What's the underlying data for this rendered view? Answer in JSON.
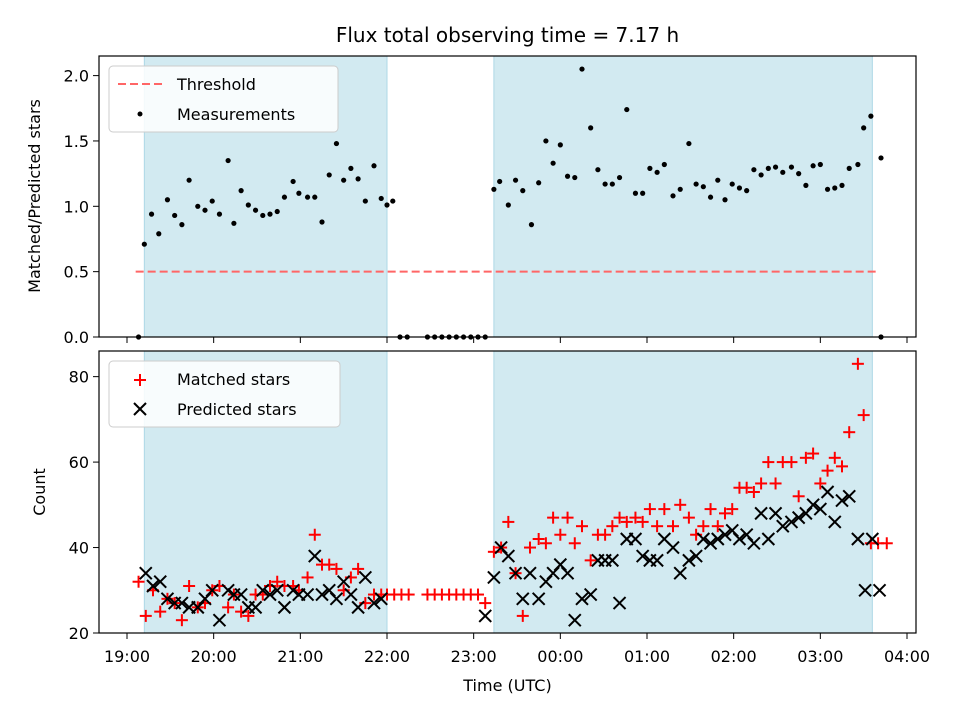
{
  "chart_data": [
    {
      "type": "scatter",
      "title": "Flux total observing time = 7.17 h",
      "ylabel": "Matched/Predicted stars",
      "xlabel": "",
      "ylim": [
        0,
        2.15
      ],
      "yticks": [
        "0.0",
        "0.5",
        "1.0",
        "1.5",
        "2.0"
      ],
      "ytick_values": [
        0.0,
        0.5,
        1.0,
        1.5,
        2.0
      ],
      "shaded_intervals": [
        [
          "19:12",
          "22:00"
        ],
        [
          "23:14",
          "03:36"
        ]
      ],
      "shade_color": "#add8e6",
      "threshold": {
        "name": "Threshold",
        "y": 0.5,
        "x_start": "19:06",
        "x_end": "03:40",
        "color": "#ff6666",
        "style": "dashed"
      },
      "legend": [
        "Threshold",
        "Measurements"
      ],
      "legend_position": "upper-left",
      "series": [
        {
          "name": "Measurements",
          "marker": "dot",
          "color": "#000000",
          "x": [
            "19:08",
            "19:12",
            "19:17",
            "19:22",
            "19:28",
            "19:33",
            "19:38",
            "19:43",
            "19:49",
            "19:54",
            "19:59",
            "20:04",
            "20:10",
            "20:14",
            "20:19",
            "20:24",
            "20:29",
            "20:34",
            "20:39",
            "20:44",
            "20:49",
            "20:55",
            "20:59",
            "21:05",
            "21:10",
            "21:15",
            "21:20",
            "21:25",
            "21:30",
            "21:35",
            "21:40",
            "21:45",
            "21:51",
            "21:56",
            "22:00",
            "22:04",
            "22:09",
            "22:14",
            "22:28",
            "22:33",
            "22:38",
            "22:43",
            "22:48",
            "22:53",
            "22:58",
            "23:03",
            "23:08",
            "23:14",
            "23:18",
            "23:24",
            "23:29",
            "23:34",
            "23:40",
            "23:45",
            "23:50",
            "23:55",
            "24:00",
            "24:05",
            "24:10",
            "24:15",
            "24:21",
            "24:26",
            "24:31",
            "24:36",
            "24:41",
            "24:46",
            "24:52",
            "24:57",
            "25:02",
            "25:07",
            "25:12",
            "25:18",
            "25:23",
            "25:29",
            "25:34",
            "25:39",
            "25:44",
            "25:49",
            "25:54",
            "25:59",
            "26:04",
            "26:09",
            "26:14",
            "26:19",
            "26:24",
            "26:29",
            "26:34",
            "26:40",
            "26:45",
            "26:50",
            "26:55",
            "27:00",
            "27:05",
            "27:10",
            "27:15",
            "27:20",
            "27:26",
            "27:30",
            "27:35",
            "27:42"
          ],
          "y": [
            0.0,
            0.71,
            0.94,
            0.79,
            1.05,
            0.93,
            0.86,
            1.2,
            1.0,
            0.97,
            1.04,
            0.94,
            1.35,
            0.87,
            1.12,
            1.01,
            0.97,
            0.93,
            0.94,
            0.96,
            1.07,
            1.19,
            1.1,
            1.07,
            1.07,
            0.88,
            1.24,
            1.48,
            1.2,
            1.29,
            1.21,
            1.04,
            1.31,
            1.06,
            1.01,
            1.04,
            0.0,
            0.0,
            0.0,
            0.0,
            0.0,
            0.0,
            0.0,
            0.0,
            0.0,
            0.0,
            0.0,
            1.13,
            1.19,
            1.01,
            1.2,
            1.12,
            0.86,
            1.18,
            1.5,
            1.33,
            1.47,
            1.23,
            1.22,
            2.05,
            1.6,
            1.28,
            1.17,
            1.17,
            1.22,
            1.74,
            1.1,
            1.1,
            1.29,
            1.26,
            1.32,
            1.08,
            1.13,
            1.48,
            1.17,
            1.15,
            1.07,
            1.2,
            1.05,
            1.17,
            1.14,
            1.12,
            1.28,
            1.24,
            1.29,
            1.3,
            1.26,
            1.3,
            1.25,
            1.16,
            1.31,
            1.32,
            1.13,
            1.14,
            1.16,
            1.29,
            1.32,
            1.6,
            1.69,
            1.37
          ]
        }
      ],
      "extra_points": {
        "x": [
          "03:42"
        ],
        "y": [
          0.0
        ]
      }
    },
    {
      "type": "scatter",
      "title": "",
      "xlabel": "Time (UTC)",
      "ylabel": "Count",
      "ylim": [
        20,
        86
      ],
      "yticks": [
        "20",
        "40",
        "60",
        "80"
      ],
      "ytick_values": [
        20,
        40,
        60,
        80
      ],
      "xticks": [
        "19:00",
        "20:00",
        "21:00",
        "22:00",
        "23:00",
        "00:00",
        "01:00",
        "02:00",
        "03:00",
        "04:00"
      ],
      "shaded_intervals": [
        [
          "19:12",
          "22:00"
        ],
        [
          "23:14",
          "03:36"
        ]
      ],
      "shade_color": "#add8e6",
      "legend": [
        "Matched stars",
        "Predicted stars"
      ],
      "legend_position": "upper-left",
      "series": [
        {
          "name": "Matched stars",
          "marker": "plus",
          "color": "#ff0000",
          "x": [
            "19:08",
            "19:13",
            "19:18",
            "19:23",
            "19:28",
            "19:33",
            "19:38",
            "19:43",
            "19:49",
            "19:54",
            "19:59",
            "20:04",
            "20:10",
            "20:14",
            "20:19",
            "20:24",
            "20:29",
            "20:34",
            "20:39",
            "20:44",
            "20:49",
            "20:55",
            "20:59",
            "21:05",
            "21:10",
            "21:15",
            "21:20",
            "21:25",
            "21:30",
            "21:35",
            "21:40",
            "21:45",
            "21:51",
            "21:56",
            "22:00",
            "22:05",
            "22:10",
            "22:15",
            "22:28",
            "22:33",
            "22:38",
            "22:43",
            "22:48",
            "22:53",
            "22:58",
            "23:03",
            "23:08",
            "23:14",
            "23:19",
            "23:24",
            "23:29",
            "23:34",
            "23:39",
            "23:45",
            "23:50",
            "23:55",
            "24:00",
            "24:05",
            "24:10",
            "24:15",
            "24:21",
            "24:26",
            "24:31",
            "24:36",
            "24:41",
            "24:46",
            "24:52",
            "24:57",
            "25:02",
            "25:07",
            "25:12",
            "25:18",
            "25:23",
            "25:29",
            "25:34",
            "25:39",
            "25:44",
            "25:49",
            "25:54",
            "25:59",
            "26:04",
            "26:09",
            "26:14",
            "26:19",
            "26:24",
            "26:29",
            "26:34",
            "26:40",
            "26:45",
            "26:50",
            "26:55",
            "27:00",
            "27:05",
            "27:10",
            "27:15",
            "27:20",
            "27:26",
            "27:30",
            "27:35",
            "27:40",
            "27:46"
          ],
          "y": [
            32,
            24,
            30,
            25,
            28,
            27,
            23,
            31,
            26,
            27,
            30,
            31,
            26,
            29,
            25,
            24,
            29,
            29,
            31,
            32,
            31,
            31,
            30,
            33,
            43,
            36,
            36,
            35,
            30,
            33,
            35,
            27,
            29,
            29,
            29,
            29,
            29,
            29,
            29,
            29,
            29,
            29,
            29,
            29,
            29,
            29,
            27,
            39,
            40,
            46,
            34,
            24,
            40,
            42,
            41,
            47,
            43,
            47,
            41,
            45,
            37,
            43,
            43,
            45,
            47,
            46,
            47,
            46,
            49,
            45,
            49,
            45,
            50,
            47,
            43,
            45,
            49,
            45,
            48,
            49,
            54,
            54,
            53,
            55,
            60,
            55,
            60,
            60,
            52,
            61,
            62,
            55,
            58,
            61,
            59,
            67,
            83,
            71,
            41,
            41,
            41
          ]
        },
        {
          "name": "Predicted stars",
          "marker": "x",
          "color": "#000000",
          "x": [
            "19:13",
            "19:18",
            "19:23",
            "19:28",
            "19:33",
            "19:38",
            "19:43",
            "19:49",
            "19:54",
            "19:59",
            "20:04",
            "20:10",
            "20:14",
            "20:19",
            "20:24",
            "20:29",
            "20:34",
            "20:39",
            "20:44",
            "20:49",
            "20:55",
            "20:59",
            "21:05",
            "21:10",
            "21:15",
            "21:20",
            "21:25",
            "21:30",
            "21:35",
            "21:40",
            "21:45",
            "21:51",
            "21:56",
            "23:08",
            "23:14",
            "23:19",
            "23:24",
            "23:29",
            "23:34",
            "23:39",
            "23:45",
            "23:50",
            "23:55",
            "24:00",
            "24:05",
            "24:10",
            "24:15",
            "24:21",
            "24:26",
            "24:31",
            "24:36",
            "24:41",
            "24:46",
            "24:52",
            "24:57",
            "25:02",
            "25:07",
            "25:12",
            "25:18",
            "25:23",
            "25:29",
            "25:34",
            "25:39",
            "25:44",
            "25:49",
            "25:54",
            "25:59",
            "26:04",
            "26:09",
            "26:14",
            "26:19",
            "26:24",
            "26:29",
            "26:34",
            "26:40",
            "26:45",
            "26:50",
            "26:55",
            "27:00",
            "27:05",
            "27:10",
            "27:15",
            "27:20",
            "27:26",
            "27:31",
            "27:36",
            "27:41"
          ],
          "y": [
            34,
            31,
            32,
            28,
            27,
            27,
            26,
            26,
            28,
            30,
            23,
            30,
            29,
            29,
            26,
            26,
            30,
            29,
            30,
            26,
            30,
            29,
            29,
            38,
            29,
            30,
            28,
            32,
            29,
            26,
            33,
            27,
            28,
            24,
            33,
            40,
            38,
            34,
            28,
            34,
            28,
            32,
            34,
            36,
            34,
            23,
            28,
            29,
            37,
            37,
            37,
            27,
            42,
            42,
            38,
            37,
            37,
            42,
            40,
            34,
            37,
            38,
            42,
            41,
            42,
            43,
            44,
            42,
            43,
            41,
            48,
            42,
            48,
            45,
            46,
            47,
            48,
            50,
            49,
            53,
            46,
            51,
            52,
            42,
            30,
            42,
            30
          ]
        }
      ]
    }
  ]
}
